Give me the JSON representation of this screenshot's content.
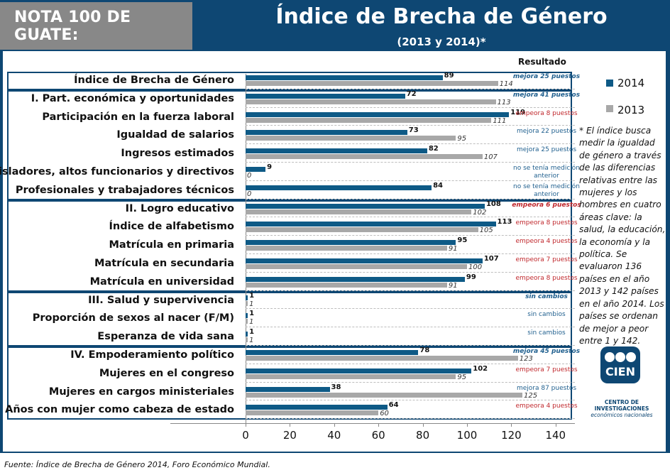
{
  "header": {
    "badge": "NOTA 100 DE GUATE:",
    "title": "Índice de Brecha de Género",
    "subtitle": "(2013 y 2014)*"
  },
  "result_header": "Resultado",
  "legend": {
    "items": [
      {
        "label": "2014",
        "color": "#0e5a86"
      },
      {
        "label": "2013",
        "color": "#a8a8a8"
      }
    ]
  },
  "note": "* El índice busca medir la igualdad de género a través de las diferencias relativas entre las mujeres y los hombres en cuatro áreas clave: la salud, la educación, la economía y la política. Se evaluaron 136 países en el año 2013 y 142 países en el año 2014. Los países se ordenan de mejor a peor entre 1 y 142.",
  "logo": {
    "text": "CIEN",
    "caption1": "CENTRO DE INVESTIGACIONES",
    "caption2": "económicos nacionales"
  },
  "footer": "Fuente:  Índice de Brecha de Género 2014, Foro Económico Mundial.",
  "chart_data": {
    "type": "bar",
    "orientation": "horizontal",
    "xlim": [
      0,
      140
    ],
    "xticks": [
      "0",
      "20",
      "40",
      "60",
      "80",
      "100",
      "120",
      "140"
    ],
    "series": [
      {
        "name": "2014"
      },
      {
        "name": "2013"
      }
    ],
    "rows": [
      {
        "label": "Índice de Brecha de Género",
        "v2014": 89,
        "v2013": 114,
        "l2014": "89",
        "l2013": "114",
        "result": "mejora 25 puestos",
        "rc": "bl",
        "bold": true
      },
      {
        "label": "I. Part. económica y oportunidades",
        "v2014": 72,
        "v2013": 113,
        "l2014": "72",
        "l2013": "113",
        "result": "mejora 41 puestos",
        "rc": "bl",
        "bold": true
      },
      {
        "label": "Participación en la fuerza laboral",
        "v2014": 119,
        "v2013": 111,
        "l2014": "119",
        "l2013": "111",
        "result": "empeora 8 puestos",
        "rc": "rd",
        "bold": false
      },
      {
        "label": "Igualdad de salarios",
        "v2014": 73,
        "v2013": 95,
        "l2014": "73",
        "l2013": "95",
        "result": "mejora 22 puestos",
        "rc": "bl",
        "bold": false
      },
      {
        "label": "Ingresos estimados",
        "v2014": 82,
        "v2013": 107,
        "l2014": "82",
        "l2013": "107",
        "result": "mejora 25 puestos",
        "rc": "bl",
        "bold": false
      },
      {
        "label": "Legisladores, altos funcionarios y directivos",
        "v2014": 9,
        "v2013": 0,
        "l2014": "9",
        "l2013": "0",
        "result": "no se tenía medición anterior",
        "rc": "bl",
        "bold": false
      },
      {
        "label": "Profesionales y trabajadores técnicos",
        "v2014": 84,
        "v2013": 0,
        "l2014": "84",
        "l2013": "0",
        "result": "no se tenía medición anterior",
        "rc": "bl",
        "bold": false
      },
      {
        "label": "II. Logro educativo",
        "v2014": 108,
        "v2013": 102,
        "l2014": "108",
        "l2013": "102",
        "result": "empeora 6 puestos",
        "rc": "rd",
        "bold": true
      },
      {
        "label": "Índice de alfabetismo",
        "v2014": 113,
        "v2013": 105,
        "l2014": "113",
        "l2013": "105",
        "result": "empeora 8 puestos",
        "rc": "rd",
        "bold": false
      },
      {
        "label": "Matrícula en primaria",
        "v2014": 95,
        "v2013": 91,
        "l2014": "95",
        "l2013": "91",
        "result": "empeora 4 puestos",
        "rc": "rd",
        "bold": false
      },
      {
        "label": "Matrícula en secundaria",
        "v2014": 107,
        "v2013": 100,
        "l2014": "107",
        "l2013": "100",
        "result": "empeora 7 puestos",
        "rc": "rd",
        "bold": false
      },
      {
        "label": "Matrícula en universidad",
        "v2014": 99,
        "v2013": 91,
        "l2014": "99",
        "l2013": "91",
        "result": "empeora 8 puestos",
        "rc": "rd",
        "bold": false
      },
      {
        "label": "III. Salud y supervivencia",
        "v2014": 1,
        "v2013": 1,
        "l2014": "1",
        "l2013": "1",
        "result": "sin cambios",
        "rc": "bl",
        "bold": true
      },
      {
        "label": "Proporción de sexos al nacer (F/M)",
        "v2014": 1,
        "v2013": 1,
        "l2014": "1",
        "l2013": "1",
        "result": "sin cambios",
        "rc": "bl",
        "bold": false
      },
      {
        "label": "Esperanza de vida sana",
        "v2014": 1,
        "v2013": 1,
        "l2014": "1",
        "l2013": "1",
        "result": "sin cambios",
        "rc": "bl",
        "bold": false
      },
      {
        "label": "IV. Empoderamiento político",
        "v2014": 78,
        "v2013": 123,
        "l2014": "78",
        "l2013": "123",
        "result": "mejora 45 puestos",
        "rc": "bl",
        "bold": true
      },
      {
        "label": "Mujeres en el congreso",
        "v2014": 102,
        "v2013": 95,
        "l2014": "102",
        "l2013": "95",
        "result": "empeora 7 puestos",
        "rc": "rd",
        "bold": false
      },
      {
        "label": "Mujeres en cargos ministeriales",
        "v2014": 38,
        "v2013": 125,
        "l2014": "38",
        "l2013": "125",
        "result": "mejora 87 puestos",
        "rc": "bl",
        "bold": false
      },
      {
        "label": "Años con mujer como cabeza de estado",
        "v2014": 64,
        "v2013": 60,
        "l2014": "64",
        "l2013": "60",
        "result": "empeora 4 puestos",
        "rc": "rd",
        "bold": false
      }
    ]
  }
}
